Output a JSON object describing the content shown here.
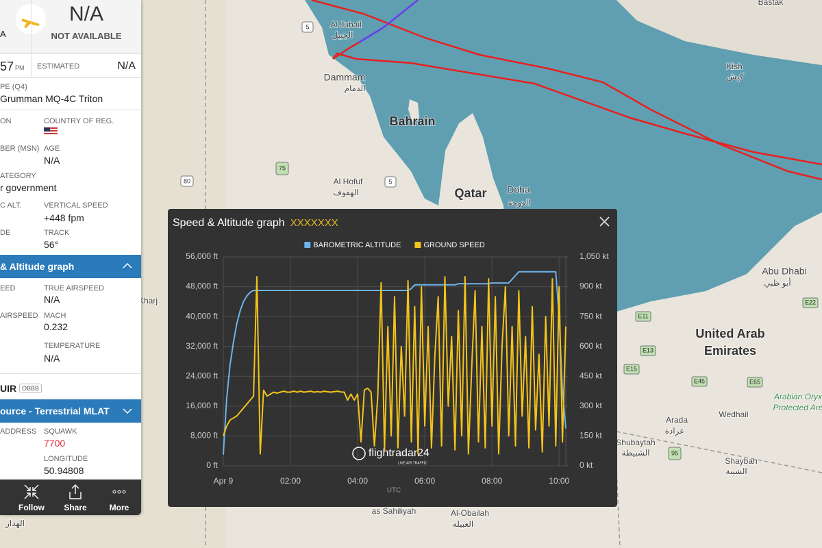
{
  "map": {
    "labels": [
      "Al Jubail",
      "الجبيل",
      "Dammam",
      "الدمام",
      "Bahrain",
      "Qatar",
      "Doha",
      "الدوحة",
      "Al Hofuf",
      "الهفوف",
      "Kish",
      "كيش",
      "Bastak",
      "Abu Dhabi",
      "أبو ظبي",
      "United Arab",
      "Emirates",
      "Arada",
      "عرادة",
      "Wedhail",
      "Shubaytah",
      "الشبيطة",
      "Shaybah",
      "الشيبة",
      "as Sahiliyah",
      "Al-Obailah",
      "العبيلة",
      "Arabian Oryx",
      "Protected Are",
      "Kharj",
      "الهدار"
    ],
    "roads": [
      "5",
      "5",
      "75",
      "80",
      "95",
      "E11",
      "E13",
      "E15",
      "E45",
      "E65",
      "E22"
    ]
  },
  "panel": {
    "edge": "A",
    "status": "N/A",
    "status_sub": "NOT AVAILABLE",
    "time": "57",
    "time_suffix": "PM",
    "estimated_label": "ESTIMATED",
    "estimated": "N/A",
    "type_label": "PE (Q4)",
    "type": "Grumman MQ-4C Triton",
    "reg_label": "ON",
    "country_label": "COUNTRY OF REG.",
    "msn_label": "BER (MSN)",
    "age_label": "AGE",
    "age": "N/A",
    "category_label": "ATEGORY",
    "category": "r government",
    "alt_label": "C ALT.",
    "vs_label": "VERTICAL SPEED",
    "vs": "+448 fpm",
    "left_label": "DE",
    "track_label": "TRACK",
    "track": "56°",
    "graph_header": "& Altitude graph",
    "gs_label": "EED",
    "tas_label": "TRUE AIRSPEED",
    "tas": "N/A",
    "ias_label": "AIRSPEED",
    "mach_label": "MACH",
    "mach": "0.232",
    "temp_label": "TEMPERATURE",
    "temp": "N/A",
    "fir": "UIR",
    "fir_code": "OBBB",
    "source_header": "ource - Terrestrial MLAT",
    "address_label": "ADDRESS",
    "squawk_label": "SQUAWK",
    "squawk": "7700",
    "lon_label": "LONGITUDE",
    "lon": "50.94808",
    "actions": [
      "Follow",
      "Share",
      "More"
    ]
  },
  "chart_data": {
    "type": "line",
    "title": "Speed & Altitude graph",
    "subtitle": "XXXXXXX",
    "xlabel": "UTC",
    "watermark": "flightradar24",
    "watermark_sub": "LIVE AIR TRAFFIC",
    "legend": "top",
    "grid": true,
    "x": [
      0,
      0.1,
      0.2,
      0.3,
      0.4,
      0.5,
      0.6,
      0.7,
      0.8,
      0.9,
      1,
      1.1,
      1.2,
      1.3,
      1.4,
      1.5,
      1.6,
      1.7,
      1.8,
      1.9,
      2,
      2.1,
      2.2,
      2.3,
      2.4,
      2.5,
      2.6,
      2.7,
      2.8,
      2.9,
      3,
      3.1,
      3.2,
      3.3,
      3.4,
      3.5,
      3.6,
      3.7,
      3.8,
      3.9,
      4,
      4.1,
      4.2,
      4.3,
      4.4,
      4.5,
      4.6,
      4.7,
      4.8,
      4.9,
      5,
      5.1,
      5.2,
      5.3,
      5.4,
      5.5,
      5.6,
      5.7,
      5.8,
      5.9,
      6,
      6.1,
      6.2,
      6.3,
      6.4,
      6.5,
      6.6,
      6.7,
      6.8,
      6.9,
      7,
      7.1,
      7.2,
      7.3,
      7.4,
      7.5,
      7.6,
      7.7,
      7.8,
      7.9,
      8,
      8.1,
      8.2,
      8.3,
      8.4,
      8.5,
      8.6,
      8.7,
      8.8,
      8.9,
      9,
      9.1,
      9.2,
      9.3,
      9.4,
      9.5,
      9.6,
      9.7,
      9.8,
      9.9,
      10,
      10.1,
      10.2
    ],
    "xlim": [
      0,
      10.2
    ],
    "xticks": [
      {
        "value": 0,
        "label": "Apr 9"
      },
      {
        "value": 2,
        "label": "02:00"
      },
      {
        "value": 4,
        "label": "04:00"
      },
      {
        "value": 6,
        "label": "06:00"
      },
      {
        "value": 8,
        "label": "08:00"
      },
      {
        "value": 10,
        "label": "10:00"
      }
    ],
    "ylim": [
      0,
      56000
    ],
    "yticks": [
      {
        "value": 0,
        "label": "0 ft"
      },
      {
        "value": 8000,
        "label": "8,000 ft"
      },
      {
        "value": 16000,
        "label": "16,000 ft"
      },
      {
        "value": 24000,
        "label": "24,000 ft"
      },
      {
        "value": 32000,
        "label": "32,000 ft"
      },
      {
        "value": 40000,
        "label": "40,000 ft"
      },
      {
        "value": 48000,
        "label": "48,000 ft"
      },
      {
        "value": 56000,
        "label": "56,000 ft"
      }
    ],
    "y2lim": [
      0,
      1050
    ],
    "y2ticks": [
      {
        "value": 0,
        "label": "0 kt"
      },
      {
        "value": 150,
        "label": "150 kt"
      },
      {
        "value": 300,
        "label": "300 kt"
      },
      {
        "value": 450,
        "label": "450 kt"
      },
      {
        "value": 600,
        "label": "600 kt"
      },
      {
        "value": 750,
        "label": "750 kt"
      },
      {
        "value": 900,
        "label": "900 kt"
      },
      {
        "value": 1050,
        "label": "1,050 kt"
      }
    ],
    "series": [
      {
        "name": "BAROMETRIC ALTITUDE",
        "color": "#6db3ec",
        "values": [
          3000,
          18000,
          27000,
          33000,
          38000,
          41500,
          44000,
          45500,
          46500,
          47000,
          47000,
          47000,
          47000,
          47000,
          47000,
          47000,
          47000,
          47000,
          47000,
          47000,
          47000,
          47000,
          47000,
          47000,
          47000,
          47000,
          47000,
          47000,
          47000,
          47000,
          47000,
          47000,
          47000,
          47000,
          47000,
          47000,
          47000,
          47000,
          47000,
          47000,
          47000,
          47000,
          47000,
          47000,
          47000,
          47000,
          47000,
          47000,
          47000,
          47000,
          47000,
          47000,
          47000,
          47000,
          47000,
          47000,
          47500,
          48500,
          48500,
          48500,
          48500,
          48500,
          48500,
          48500,
          48500,
          48500,
          48500,
          48500,
          48500,
          48500,
          48800,
          48800,
          48800,
          48800,
          48800,
          48800,
          48800,
          48800,
          48800,
          48800,
          49000,
          49000,
          49000,
          49000,
          49000,
          49000,
          50000,
          51000,
          52000,
          52000,
          52000,
          52000,
          52000,
          52000,
          52000,
          52000,
          52000,
          52000,
          52000,
          52000,
          40000,
          20000,
          10000
        ]
      },
      {
        "name": "GROUND SPEED",
        "color": "#f2c31c",
        "axis": "y2",
        "values": [
          150,
          200,
          230,
          240,
          250,
          270,
          290,
          310,
          330,
          350,
          950,
          60,
          380,
          350,
          360,
          370,
          365,
          370,
          375,
          370,
          370,
          375,
          370,
          375,
          370,
          372,
          375,
          370,
          373,
          370,
          375,
          372,
          370,
          373,
          375,
          371,
          370,
          330,
          360,
          330,
          360,
          120,
          380,
          390,
          370,
          100,
          350,
          920,
          80,
          700,
          150,
          850,
          90,
          600,
          250,
          930,
          120,
          800,
          60,
          900,
          200,
          700,
          90,
          550,
          850,
          100,
          950,
          300,
          650,
          80,
          780,
          150,
          950,
          60,
          500,
          880,
          120,
          700,
          90,
          940,
          200,
          850,
          60,
          600,
          900,
          150,
          700,
          100,
          880,
          250,
          650,
          90,
          800,
          180,
          560,
          70,
          750,
          200,
          940,
          100,
          900,
          120,
          700
        ]
      }
    ]
  }
}
